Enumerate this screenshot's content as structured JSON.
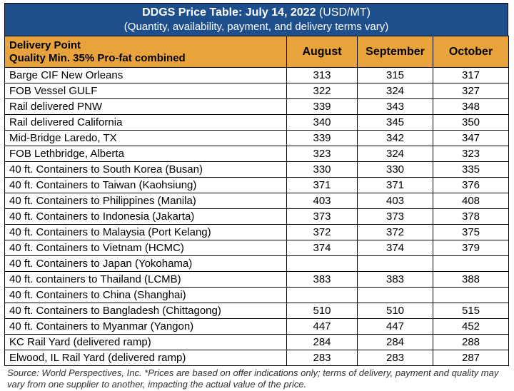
{
  "banner": {
    "title": "DDGS Price Table: July 14, 2022",
    "unit": " (USD/MT)",
    "subtitle": "(Quantity, availability, payment, and delivery terms vary)"
  },
  "header": {
    "delivery_point": "Delivery Point",
    "quality": "Quality Min. 35% Pro-fat combined",
    "months": [
      "August",
      "September",
      "October"
    ]
  },
  "rows": [
    {
      "label": "Barge CIF New Orleans",
      "values": [
        "313",
        "315",
        "317"
      ]
    },
    {
      "label": "FOB Vessel GULF",
      "values": [
        "322",
        "324",
        "327"
      ]
    },
    {
      "label": "Rail delivered PNW",
      "values": [
        "339",
        "343",
        "348"
      ]
    },
    {
      "label": "Rail delivered California",
      "values": [
        "340",
        "345",
        "350"
      ]
    },
    {
      "label": "Mid-Bridge Laredo, TX",
      "values": [
        "339",
        "342",
        "347"
      ]
    },
    {
      "label": "FOB Lethbridge, Alberta",
      "values": [
        "323",
        "324",
        "323"
      ]
    },
    {
      "label": "40 ft. Containers to South Korea (Busan)",
      "values": [
        "330",
        "330",
        "335"
      ]
    },
    {
      "label": "40 ft. Containers to Taiwan (Kaohsiung)",
      "values": [
        "371",
        "371",
        "376"
      ]
    },
    {
      "label": "40 ft. Containers to Philippines (Manila)",
      "values": [
        "403",
        "403",
        "408"
      ]
    },
    {
      "label": "40 ft. Containers to Indonesia (Jakarta)",
      "values": [
        "373",
        "373",
        "378"
      ]
    },
    {
      "label": "40 ft. Containers to Malaysia (Port Kelang)",
      "values": [
        "372",
        "372",
        "375"
      ]
    },
    {
      "label": "40 ft. Containers to Vietnam (HCMC)",
      "values": [
        "374",
        "374",
        "379"
      ]
    },
    {
      "label": "40 ft. Containers to Japan (Yokohama)",
      "values": [
        "",
        "",
        ""
      ]
    },
    {
      "label": "40 ft. containers to Thailand (LCMB)",
      "values": [
        "383",
        "383",
        "388"
      ]
    },
    {
      "label": "40 ft. Containers to China (Shanghai)",
      "values": [
        "",
        "",
        ""
      ]
    },
    {
      "label": "40 ft. Containers to Bangladesh (Chittagong)",
      "values": [
        "510",
        "510",
        "515"
      ]
    },
    {
      "label": "40 ft. Containers to Myanmar (Yangon)",
      "values": [
        "447",
        "447",
        "452"
      ]
    },
    {
      "label": "KC Rail Yard (delivered ramp)",
      "values": [
        "284",
        "284",
        "288"
      ]
    },
    {
      "label": "Elwood, IL Rail Yard (delivered ramp)",
      "values": [
        "283",
        "283",
        "287"
      ]
    }
  ],
  "source_note": "Source: World Perspectives, Inc. *Prices are based on offer indications only; terms of delivery, payment and quality may vary from one supplier to another, impacting the actual value of the price.",
  "colors": {
    "banner_bg": "#1f4e8c",
    "header_bg": "#e8a33d"
  }
}
